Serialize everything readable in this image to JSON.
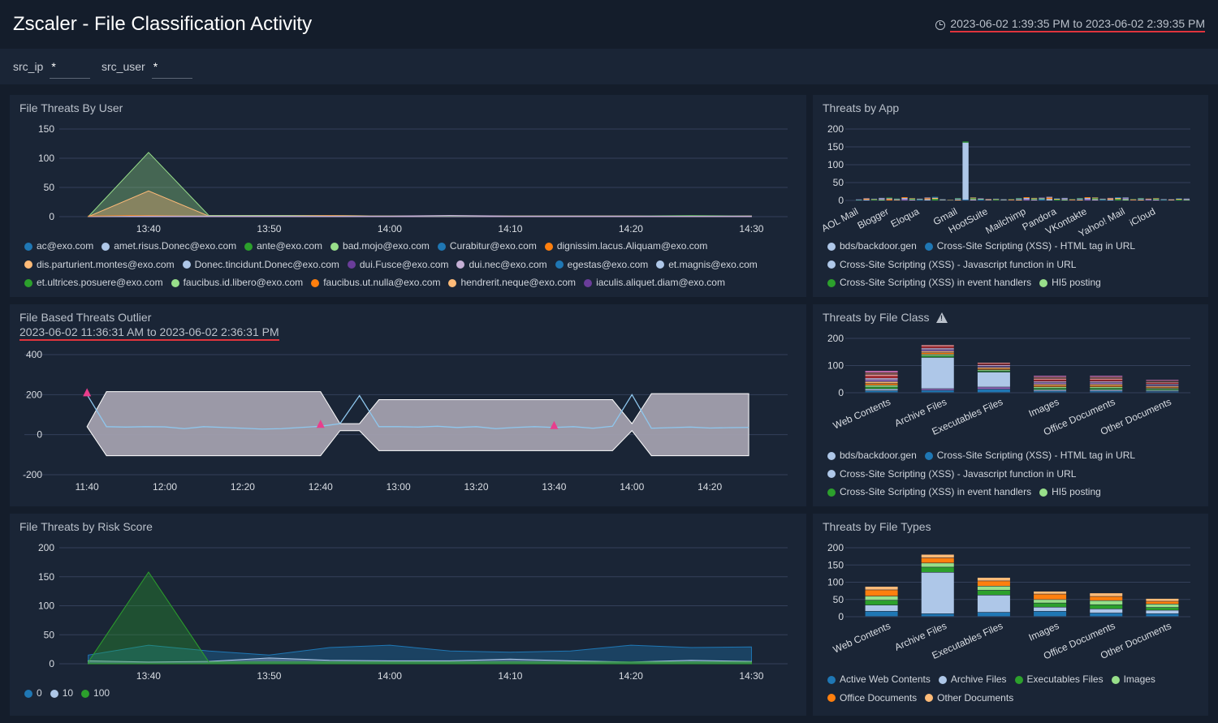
{
  "header": {
    "title": "Zscaler - File Classification Activity",
    "time_range": "2023-06-02 1:39:35 PM to 2023-06-02 2:39:35 PM"
  },
  "filters": [
    {
      "label": "src_ip",
      "value": "*"
    },
    {
      "label": "src_user",
      "value": "*"
    }
  ],
  "icons": {
    "time": "clock-icon",
    "warning": "warning-icon"
  },
  "colors": {
    "background": "#141d2b",
    "panel": "#1a2536",
    "grid": "#34405a",
    "underline": "#e0343c",
    "outlier_marker": "#e83e8c"
  },
  "panels": {
    "threats_by_user": {
      "title": "File Threats By User",
      "legend": [
        {
          "name": "ac@exo.com",
          "color": "#1f77b4"
        },
        {
          "name": "amet.risus.Donec@exo.com",
          "color": "#aec7e8"
        },
        {
          "name": "ante@exo.com",
          "color": "#2ca02c"
        },
        {
          "name": "bad.mojo@exo.com",
          "color": "#98df8a"
        },
        {
          "name": "Curabitur@exo.com",
          "color": "#1f77b4"
        },
        {
          "name": "dignissim.lacus.Aliquam@exo.com",
          "color": "#ff7f0e"
        },
        {
          "name": "dis.parturient.montes@exo.com",
          "color": "#ffbb78"
        },
        {
          "name": "Donec.tincidunt.Donec@exo.com",
          "color": "#aec7e8"
        },
        {
          "name": "dui.Fusce@exo.com",
          "color": "#6a3d9a"
        },
        {
          "name": "dui.nec@exo.com",
          "color": "#c5b0d5"
        },
        {
          "name": "egestas@exo.com",
          "color": "#1f77b4"
        },
        {
          "name": "et.magnis@exo.com",
          "color": "#aec7e8"
        },
        {
          "name": "et.ultrices.posuere@exo.com",
          "color": "#2ca02c"
        },
        {
          "name": "faucibus.id.libero@exo.com",
          "color": "#98df8a"
        },
        {
          "name": "faucibus.ut.nulla@exo.com",
          "color": "#ff7f0e"
        },
        {
          "name": "hendrerit.neque@exo.com",
          "color": "#ffbb78"
        },
        {
          "name": "iaculis.aliquet.diam@exo.com",
          "color": "#6a3d9a"
        }
      ]
    },
    "threats_by_app": {
      "title": "Threats by App",
      "legend": [
        {
          "name": "bds/backdoor.gen",
          "color": "#aec7e8"
        },
        {
          "name": "Cross-Site Scripting (XSS) - HTML tag in URL",
          "color": "#1f77b4"
        },
        {
          "name": "Cross-Site Scripting (XSS) - Javascript function in URL",
          "color": "#aec7e8"
        },
        {
          "name": "Cross-Site Scripting (XSS) in event handlers",
          "color": "#2ca02c"
        },
        {
          "name": "HI5 posting",
          "color": "#98df8a"
        }
      ]
    },
    "outlier": {
      "title": "File Based Threats Outlier",
      "time_range": "2023-06-02 11:36:31 AM to 2023-06-02 2:36:31 PM"
    },
    "threats_by_file_class": {
      "title": "Threats by File Class",
      "legend": [
        {
          "name": "bds/backdoor.gen",
          "color": "#aec7e8"
        },
        {
          "name": "Cross-Site Scripting (XSS) - HTML tag in URL",
          "color": "#1f77b4"
        },
        {
          "name": "Cross-Site Scripting (XSS) - Javascript function in URL",
          "color": "#aec7e8"
        },
        {
          "name": "Cross-Site Scripting (XSS) in event handlers",
          "color": "#2ca02c"
        },
        {
          "name": "HI5 posting",
          "color": "#98df8a"
        }
      ]
    },
    "threats_by_risk": {
      "title": "File Threats by Risk Score",
      "legend": [
        {
          "name": "0",
          "color": "#1f77b4"
        },
        {
          "name": "10",
          "color": "#aec7e8"
        },
        {
          "name": "100",
          "color": "#2ca02c"
        }
      ]
    },
    "threats_by_file_types": {
      "title": "Threats by File Types",
      "legend": [
        {
          "name": "Active Web Contents",
          "color": "#1f77b4"
        },
        {
          "name": "Archive Files",
          "color": "#aec7e8"
        },
        {
          "name": "Executables Files",
          "color": "#2ca02c"
        },
        {
          "name": "Images",
          "color": "#98df8a"
        },
        {
          "name": "Office Documents",
          "color": "#ff7f0e"
        },
        {
          "name": "Other Documents",
          "color": "#ffbb78"
        }
      ]
    }
  },
  "chart_data": [
    {
      "id": "user",
      "type": "area",
      "x_ticks": [
        "13:40",
        "13:50",
        "14:00",
        "14:10",
        "14:20",
        "14:30"
      ],
      "y_ticks": [
        0,
        50,
        100,
        150
      ],
      "ylim": [
        0,
        150
      ],
      "x_range_minutes": [
        -7,
        53
      ],
      "x": [
        -5,
        0,
        5,
        10,
        15,
        20,
        25,
        30,
        35,
        40,
        45,
        50
      ],
      "series": [
        {
          "name": "bad.mojo@exo.com",
          "color": "#98df8a",
          "values": [
            0,
            110,
            2,
            2,
            2,
            1,
            1,
            1,
            1,
            1,
            1,
            1
          ]
        },
        {
          "name": "dis.parturient.montes@exo.com",
          "color": "#ffbb78",
          "values": [
            0,
            44,
            1,
            1,
            1,
            1,
            1,
            1,
            1,
            1,
            1,
            1
          ]
        },
        {
          "name": "dignissim.lacus.Aliquam@exo.com",
          "color": "#ff7f0e",
          "values": [
            1,
            2,
            1,
            1,
            2,
            1,
            1,
            1,
            1,
            1,
            1,
            1
          ]
        },
        {
          "name": "ante@exo.com",
          "color": "#2ca02c",
          "values": [
            0,
            1,
            1,
            1,
            1,
            1,
            1,
            1,
            1,
            1,
            2,
            1
          ]
        },
        {
          "name": "dui.nec@exo.com",
          "color": "#c5b0d5",
          "values": [
            0,
            1,
            1,
            1,
            1,
            1,
            2,
            1,
            1,
            1,
            1,
            1
          ]
        }
      ]
    },
    {
      "id": "app",
      "type": "bar",
      "ylim": [
        0,
        200
      ],
      "y_ticks": [
        0,
        50,
        100,
        150,
        200
      ],
      "category_labels": [
        "AOL Mail",
        "Blogger",
        "Eloqua",
        "Gmail",
        "HootSuite",
        "Mailchimp",
        "Pandora",
        "VKontakte",
        "Yahoo! Mail",
        "iCloud"
      ],
      "label_slots": [
        0,
        4,
        8,
        13,
        17,
        22,
        26,
        30,
        35,
        39
      ],
      "bar_count": 44,
      "values": [
        3,
        6,
        5,
        7,
        8,
        5,
        9,
        6,
        5,
        8,
        10,
        3,
        2,
        6,
        165,
        8,
        6,
        4,
        5,
        3,
        4,
        6,
        9,
        7,
        8,
        10,
        6,
        7,
        4,
        6,
        9,
        8,
        5,
        7,
        9,
        8,
        4,
        6,
        5,
        6,
        4,
        3,
        6,
        5
      ],
      "segment_colors": [
        "#1f77b4",
        "#aec7e8",
        "#2ca02c",
        "#98df8a",
        "#ff7f0e",
        "#ffbb78",
        "#9467bd",
        "#c5b0d5"
      ]
    },
    {
      "id": "outlier",
      "type": "line",
      "x_ticks": [
        "11:40",
        "12:00",
        "12:20",
        "12:40",
        "13:00",
        "13:20",
        "13:40",
        "14:00",
        "14:20"
      ],
      "y_ticks": [
        -200,
        0,
        200,
        400
      ],
      "ylim": [
        -200,
        400
      ],
      "x_range_minutes": [
        -4,
        180
      ],
      "x": [
        0,
        5,
        10,
        15,
        20,
        25,
        30,
        35,
        40,
        45,
        50,
        55,
        60,
        65,
        70,
        75,
        80,
        85,
        90,
        95,
        100,
        105,
        110,
        115,
        120,
        125,
        130,
        135,
        140,
        145,
        150,
        155,
        160,
        165,
        170
      ],
      "series": [
        {
          "name": "values",
          "values": [
            200,
            40,
            38,
            40,
            39,
            30,
            40,
            36,
            32,
            28,
            30,
            36,
            42,
            55,
            195,
            40,
            40,
            38,
            42,
            36,
            40,
            30,
            36,
            40,
            36,
            40,
            32,
            42,
            200,
            32,
            35,
            38,
            33,
            35,
            36
          ]
        },
        {
          "name": "upper",
          "values": [
            40,
            215,
            215,
            215,
            215,
            215,
            215,
            215,
            215,
            215,
            215,
            215,
            215,
            55,
            55,
            175,
            175,
            175,
            175,
            175,
            175,
            175,
            175,
            175,
            175,
            175,
            175,
            175,
            55,
            205,
            205,
            205,
            205,
            205,
            205
          ]
        },
        {
          "name": "lower",
          "values": [
            40,
            -105,
            -105,
            -105,
            -105,
            -105,
            -105,
            -105,
            -105,
            -105,
            -105,
            -105,
            -105,
            20,
            20,
            -80,
            -80,
            -80,
            -80,
            -80,
            -80,
            -80,
            -80,
            -80,
            -80,
            -80,
            -80,
            -80,
            20,
            -105,
            -105,
            -105,
            -105,
            -105,
            -105
          ]
        }
      ],
      "outlier_x": [
        0,
        60,
        120
      ]
    },
    {
      "id": "fileclass",
      "type": "bar",
      "ylim": [
        0,
        200
      ],
      "y_ticks": [
        0,
        100,
        200
      ],
      "categories": [
        "Web Contents",
        "Archive Files",
        "Executables Files",
        "Images",
        "Office Documents",
        "Other Documents"
      ],
      "values": [
        80,
        175,
        110,
        62,
        62,
        47
      ],
      "segment_colors": [
        "#1f77b4",
        "#aec7e8",
        "#2ca02c",
        "#98df8a",
        "#ff7f0e",
        "#ffbb78",
        "#9467bd",
        "#c5b0d5",
        "#d62728",
        "#ff9896",
        "#8c564b",
        "#e377c2"
      ]
    },
    {
      "id": "risk",
      "type": "area",
      "x_ticks": [
        "13:40",
        "13:50",
        "14:00",
        "14:10",
        "14:20",
        "14:30"
      ],
      "y_ticks": [
        0,
        50,
        100,
        150,
        200
      ],
      "ylim": [
        0,
        200
      ],
      "x_range_minutes": [
        -7,
        53
      ],
      "x": [
        -5,
        0,
        5,
        10,
        15,
        20,
        25,
        30,
        35,
        40,
        45,
        50
      ],
      "series": [
        {
          "name": "0",
          "color": "#1f77b4",
          "values": [
            15,
            32,
            22,
            15,
            28,
            32,
            22,
            20,
            22,
            32,
            28,
            29
          ]
        },
        {
          "name": "10",
          "color": "#aec7e8",
          "values": [
            5,
            3,
            4,
            10,
            6,
            5,
            5,
            8,
            5,
            3,
            6,
            4
          ]
        },
        {
          "name": "100",
          "color": "#2ca02c",
          "values": [
            3,
            158,
            3,
            3,
            3,
            3,
            3,
            3,
            3,
            3,
            3,
            3
          ]
        }
      ]
    },
    {
      "id": "filetypes",
      "type": "bar",
      "ylim": [
        0,
        200
      ],
      "y_ticks": [
        0,
        50,
        100,
        150,
        200
      ],
      "categories": [
        "Web Contents",
        "Archive Files",
        "Executables Files",
        "Images",
        "Office Documents",
        "Other Documents"
      ],
      "series": [
        {
          "name": "Active Web Contents",
          "color": "#1f77b4",
          "values": [
            15,
            8,
            12,
            15,
            10,
            8
          ]
        },
        {
          "name": "Archive Files",
          "color": "#aec7e8",
          "values": [
            18,
            120,
            50,
            12,
            12,
            10
          ]
        },
        {
          "name": "Executables Files",
          "color": "#2ca02c",
          "values": [
            14,
            15,
            14,
            12,
            12,
            8
          ]
        },
        {
          "name": "Images",
          "color": "#98df8a",
          "values": [
            12,
            12,
            12,
            10,
            12,
            10
          ]
        },
        {
          "name": "Office Documents",
          "color": "#ff7f0e",
          "values": [
            18,
            15,
            15,
            16,
            12,
            8
          ]
        },
        {
          "name": "Other Documents",
          "color": "#ffbb78",
          "values": [
            10,
            10,
            10,
            8,
            10,
            8
          ]
        }
      ]
    }
  ]
}
